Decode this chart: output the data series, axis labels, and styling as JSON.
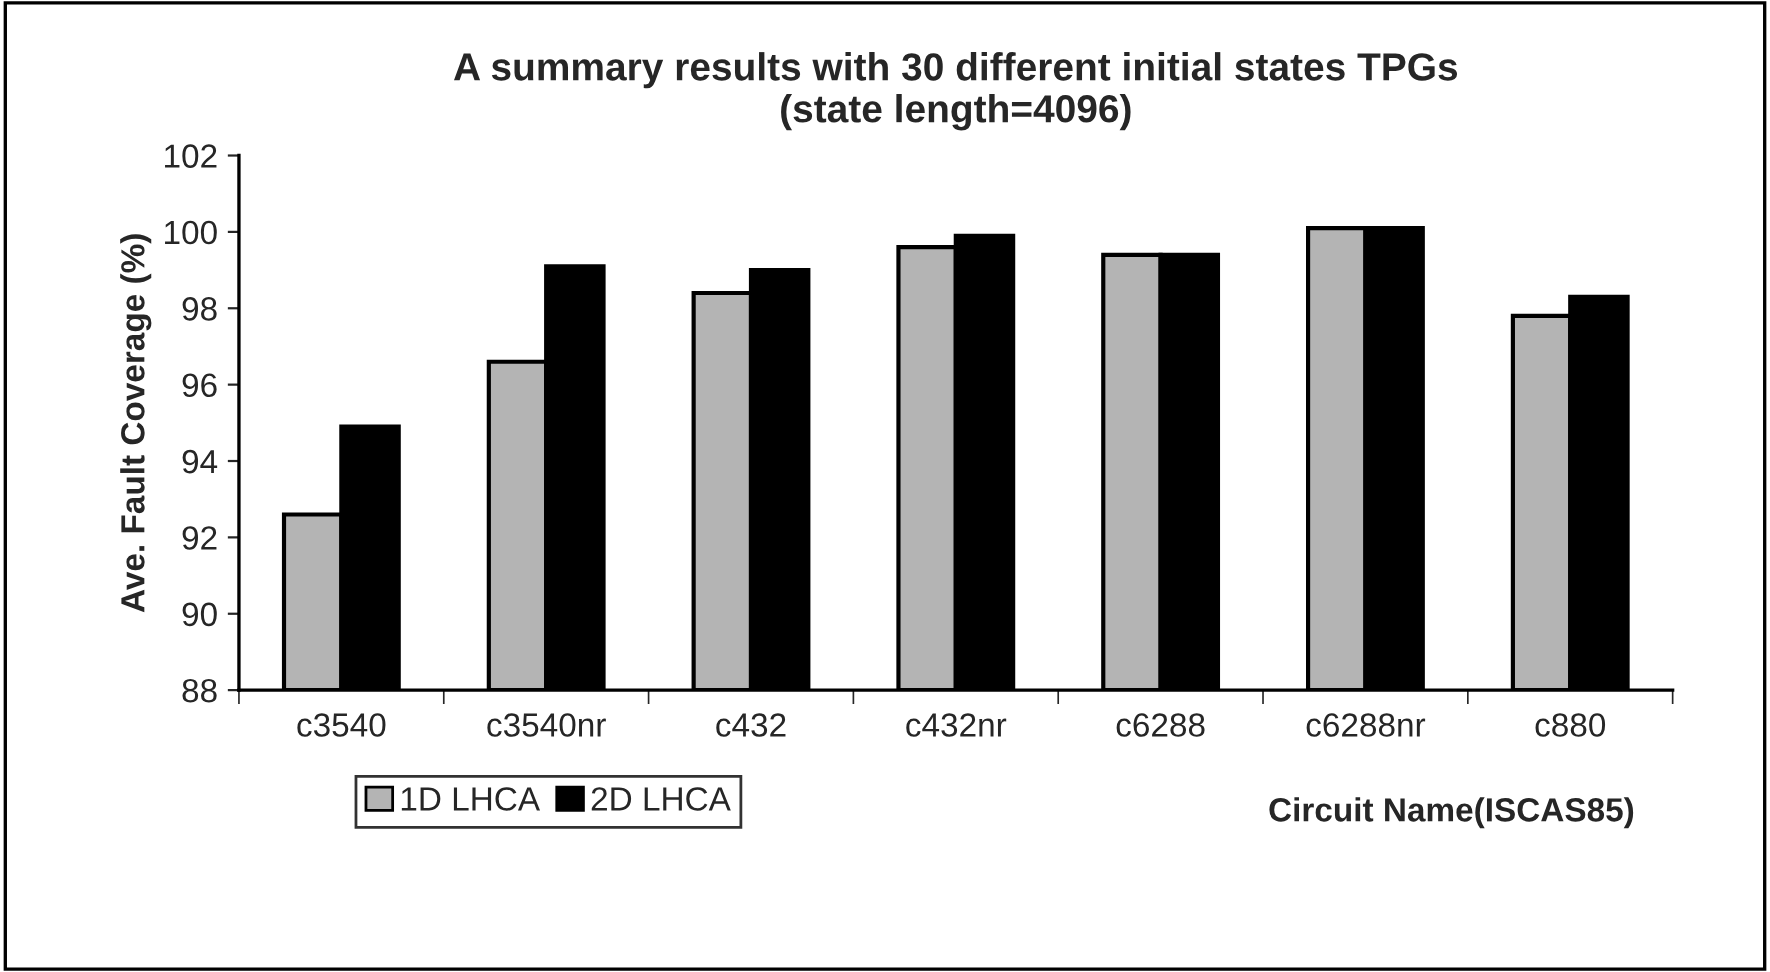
{
  "chart_data": {
    "type": "bar",
    "title": "A summary results with 30 different initial states TPGs\n(state length=4096)",
    "xlabel": "Circuit Name(ISCAS85)",
    "ylabel": "Ave. Fault Coverage (%)",
    "categories": [
      "c3540",
      "c3540nr",
      "c432",
      "c432nr",
      "c6288",
      "c6288nr",
      "c880"
    ],
    "series": [
      {
        "name": "1D LHCA",
        "color": "#b4b4b4",
        "values": [
          92.6,
          96.6,
          98.4,
          99.6,
          99.4,
          100.1,
          97.8
        ]
      },
      {
        "name": "2D LHCA",
        "color": "#000000",
        "values": [
          94.9,
          99.1,
          99.0,
          99.9,
          99.4,
          100.1,
          98.3
        ]
      }
    ],
    "ylim": [
      88,
      102
    ],
    "yticks": [
      88,
      90,
      92,
      94,
      96,
      98,
      100,
      102
    ],
    "grid": false,
    "legend": "bottom left"
  }
}
